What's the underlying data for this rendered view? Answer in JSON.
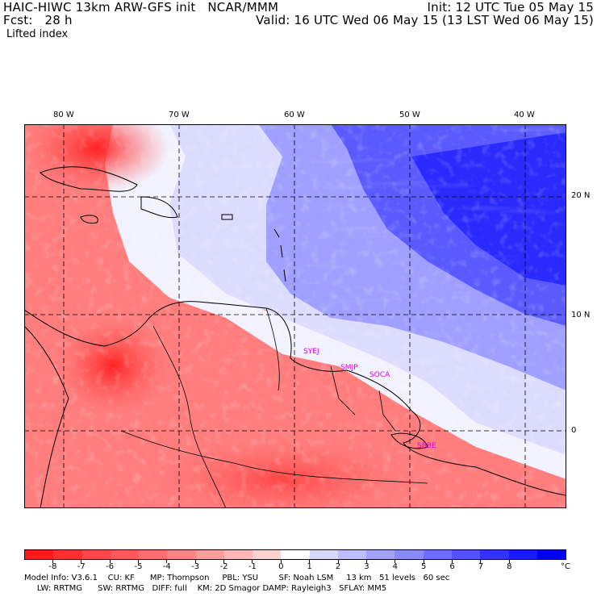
{
  "header": {
    "model_line": "HAIC-HIWC 13km ARW-GFS init   NCAR/MMM",
    "forecast_line": "Fcst:   28 h",
    "field_name": "Lifted index",
    "init_line": "Init: 12 UTC Tue 05 May 15",
    "valid_line": "Valid: 16 UTC Wed 06 May 15 (13 LST Wed 06 May 15)"
  },
  "map": {
    "longitude_labels": [
      "80 W",
      "70 W",
      "60 W",
      "50 W",
      "40 W"
    ],
    "latitude_labels": [
      "20 N",
      "10 N",
      "0"
    ],
    "city_labels": [
      "SYEJ",
      "SMJP",
      "SOCA",
      "SBBE"
    ]
  },
  "colorbar": {
    "tick_labels": [
      "-8",
      "-7",
      "-6",
      "-5",
      "-4",
      "-3",
      "-2",
      "-1",
      "0",
      "1",
      "2",
      "3",
      "4",
      "5",
      "6",
      "7",
      "8"
    ],
    "unit": "°C",
    "colors": [
      "#ff1a1a",
      "#ff3030",
      "#ff4848",
      "#ff5a5a",
      "#ff6e6e",
      "#ff8585",
      "#ff9d9d",
      "#ffb6b6",
      "#ffd1d1",
      "#ffffff",
      "#d6d6ff",
      "#bdbdff",
      "#a3a3ff",
      "#8a8aff",
      "#6f6fff",
      "#5252ff",
      "#3333ff",
      "#1a1aff",
      "#0000f0"
    ]
  },
  "footer": {
    "line1": "Model Info: V3.6.1    CU: KF      MP: Thompson     PBL: YSU        SF: Noah LSM     13 km   51 levels   60 sec",
    "line2": "     LW: RRTMG      SW: RRTMG   DIFF: full    KM: 2D Smagor DAMP: Rayleigh3   SFLAY: MM5"
  }
}
